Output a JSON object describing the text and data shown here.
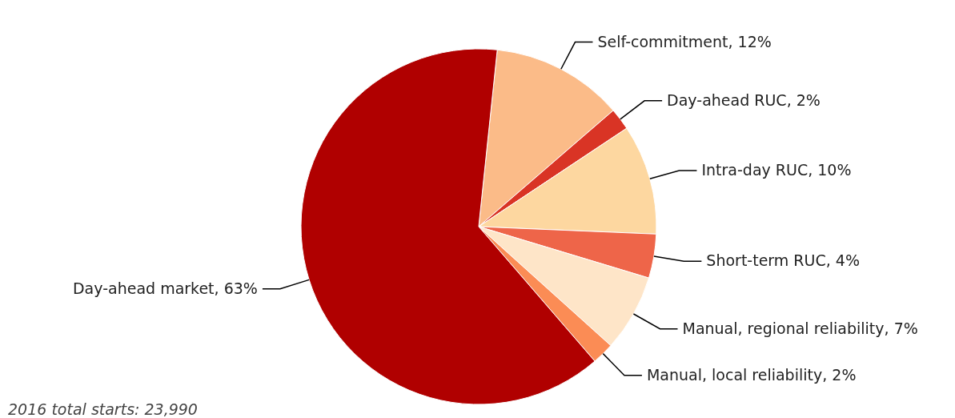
{
  "chart_data": {
    "type": "pie",
    "categories": [
      "Self-commitment",
      "Day-ahead RUC",
      "Intra-day RUC",
      "Short-term RUC",
      "Manual, regional reliability",
      "Manual, local reliability",
      "Day-ahead market"
    ],
    "values": [
      12,
      2,
      10,
      4,
      7,
      2,
      63
    ],
    "value_labels": [
      "12%",
      "2%",
      "10%",
      "4%",
      "7%",
      "2%",
      "63%"
    ],
    "colors": [
      "#fbbb88",
      "#d93425",
      "#fdd7a0",
      "#ee6549",
      "#fee5c8",
      "#fb8c55",
      "#b00000"
    ],
    "annotations": [
      "2016 total starts: 23,990"
    ]
  }
}
